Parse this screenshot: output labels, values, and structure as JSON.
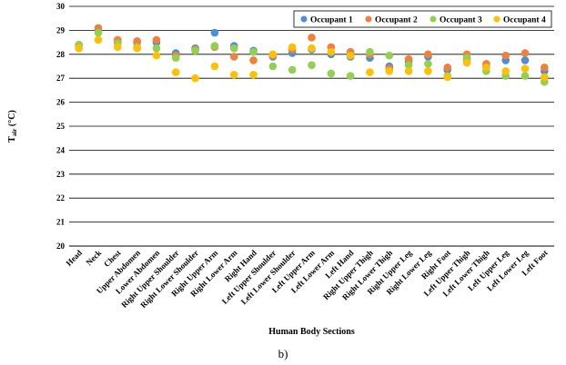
{
  "chart_data": {
    "type": "scatter",
    "title": "",
    "xlabel": "Human Body Sections",
    "ylabel_main": "T",
    "ylabel_sub": "air",
    "ylabel_unit": " (°C)",
    "ylim": [
      20,
      30
    ],
    "yticks": [
      20,
      21,
      22,
      23,
      24,
      25,
      26,
      27,
      28,
      29,
      30
    ],
    "grid": true,
    "legend_position": "top-right",
    "categories": [
      "Head",
      "Neck",
      "Chest",
      "Upper Abdomen",
      "Lower Abdomen",
      "Right Upper Shoulder",
      "Right Lower Shoulder",
      "Right Upper Arm",
      "Right Lower Arm",
      "Right Hand",
      "Left Upper Shoulder",
      "Left Lower Shoulder",
      "Left Upper Arm",
      "Left Lower Arm",
      "Left Hand",
      "Right Upper Thigh",
      "Right Lower Thigh",
      "Right Upper Leg",
      "Right Lower Leg",
      "Right Foot",
      "Left Upper Thigh",
      "Left Lower Thigh",
      "Left Upper Leg",
      "Left Lower Leg",
      "Left Foot"
    ],
    "series": [
      {
        "name": "Occupant 1",
        "color": "#4a8fd8",
        "values": [
          28.35,
          29.0,
          28.5,
          28.5,
          28.5,
          28.05,
          28.25,
          28.9,
          28.35,
          28.15,
          27.9,
          28.05,
          28.2,
          28.0,
          27.9,
          27.85,
          27.5,
          27.7,
          27.9,
          27.35,
          27.8,
          27.5,
          27.75,
          27.75,
          27.3
        ]
      },
      {
        "name": "Occupant 2",
        "color": "#f0803c",
        "values": [
          28.4,
          29.1,
          28.6,
          28.55,
          28.6,
          27.95,
          28.2,
          28.3,
          27.9,
          27.75,
          27.95,
          28.2,
          28.7,
          28.3,
          28.1,
          28.0,
          27.4,
          27.8,
          28.0,
          27.45,
          28.0,
          27.6,
          27.95,
          28.05,
          27.45
        ]
      },
      {
        "name": "Occupant 3",
        "color": "#92d050",
        "values": [
          28.4,
          28.9,
          28.45,
          28.3,
          28.25,
          27.85,
          28.15,
          28.35,
          28.25,
          28.1,
          27.5,
          27.35,
          27.55,
          27.2,
          27.1,
          28.1,
          27.95,
          27.55,
          27.6,
          27.1,
          27.85,
          27.3,
          27.1,
          27.1,
          26.85
        ]
      },
      {
        "name": "Occupant 4",
        "color": "#ffc000",
        "values": [
          28.25,
          28.6,
          28.3,
          28.25,
          27.95,
          27.25,
          27.0,
          27.5,
          27.15,
          27.15,
          28.0,
          28.3,
          28.25,
          28.1,
          27.95,
          27.25,
          27.3,
          27.3,
          27.3,
          27.05,
          27.65,
          27.45,
          27.3,
          27.4,
          27.05
        ]
      }
    ]
  },
  "caption": "b)"
}
